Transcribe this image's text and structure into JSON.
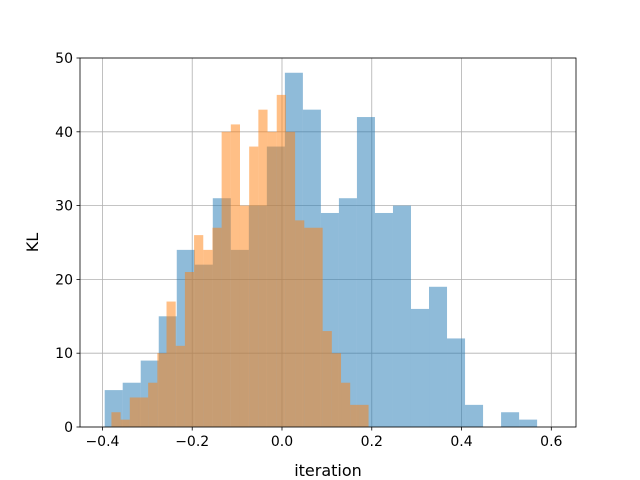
{
  "chart_data": {
    "type": "bar",
    "xlabel": "iteration",
    "ylabel": "KL",
    "xlim": [
      -0.45,
      0.655
    ],
    "ylim": [
      0,
      50
    ],
    "xticks": [
      -0.4,
      -0.2,
      0.0,
      0.2,
      0.4,
      0.6
    ],
    "xtick_labels": [
      "−0.4",
      "−0.2",
      "0.0",
      "0.2",
      "0.4",
      "0.6"
    ],
    "yticks": [
      0,
      10,
      20,
      30,
      40,
      50
    ],
    "ytick_labels": [
      "0",
      "10",
      "20",
      "30",
      "40",
      "50"
    ],
    "grid": true,
    "series": [
      {
        "color": "#1f77b4",
        "opacity": 0.5,
        "bin_start": -0.395,
        "bin_width": 0.04014,
        "values": [
          5,
          6,
          9,
          15,
          24,
          22,
          31,
          24,
          30,
          38,
          48,
          43,
          29,
          31,
          42,
          29,
          30,
          16,
          19,
          12,
          3,
          0,
          2,
          1
        ]
      },
      {
        "color": "#ff7f0e",
        "opacity": 0.5,
        "bin_start": -0.38,
        "bin_width": 0.02046,
        "values": [
          2,
          1,
          4,
          4,
          6,
          10,
          17,
          11,
          21,
          26,
          24,
          27,
          40,
          41,
          30,
          38,
          43,
          40,
          45,
          40,
          28,
          27,
          27,
          13,
          10,
          6,
          3,
          3
        ]
      }
    ]
  }
}
